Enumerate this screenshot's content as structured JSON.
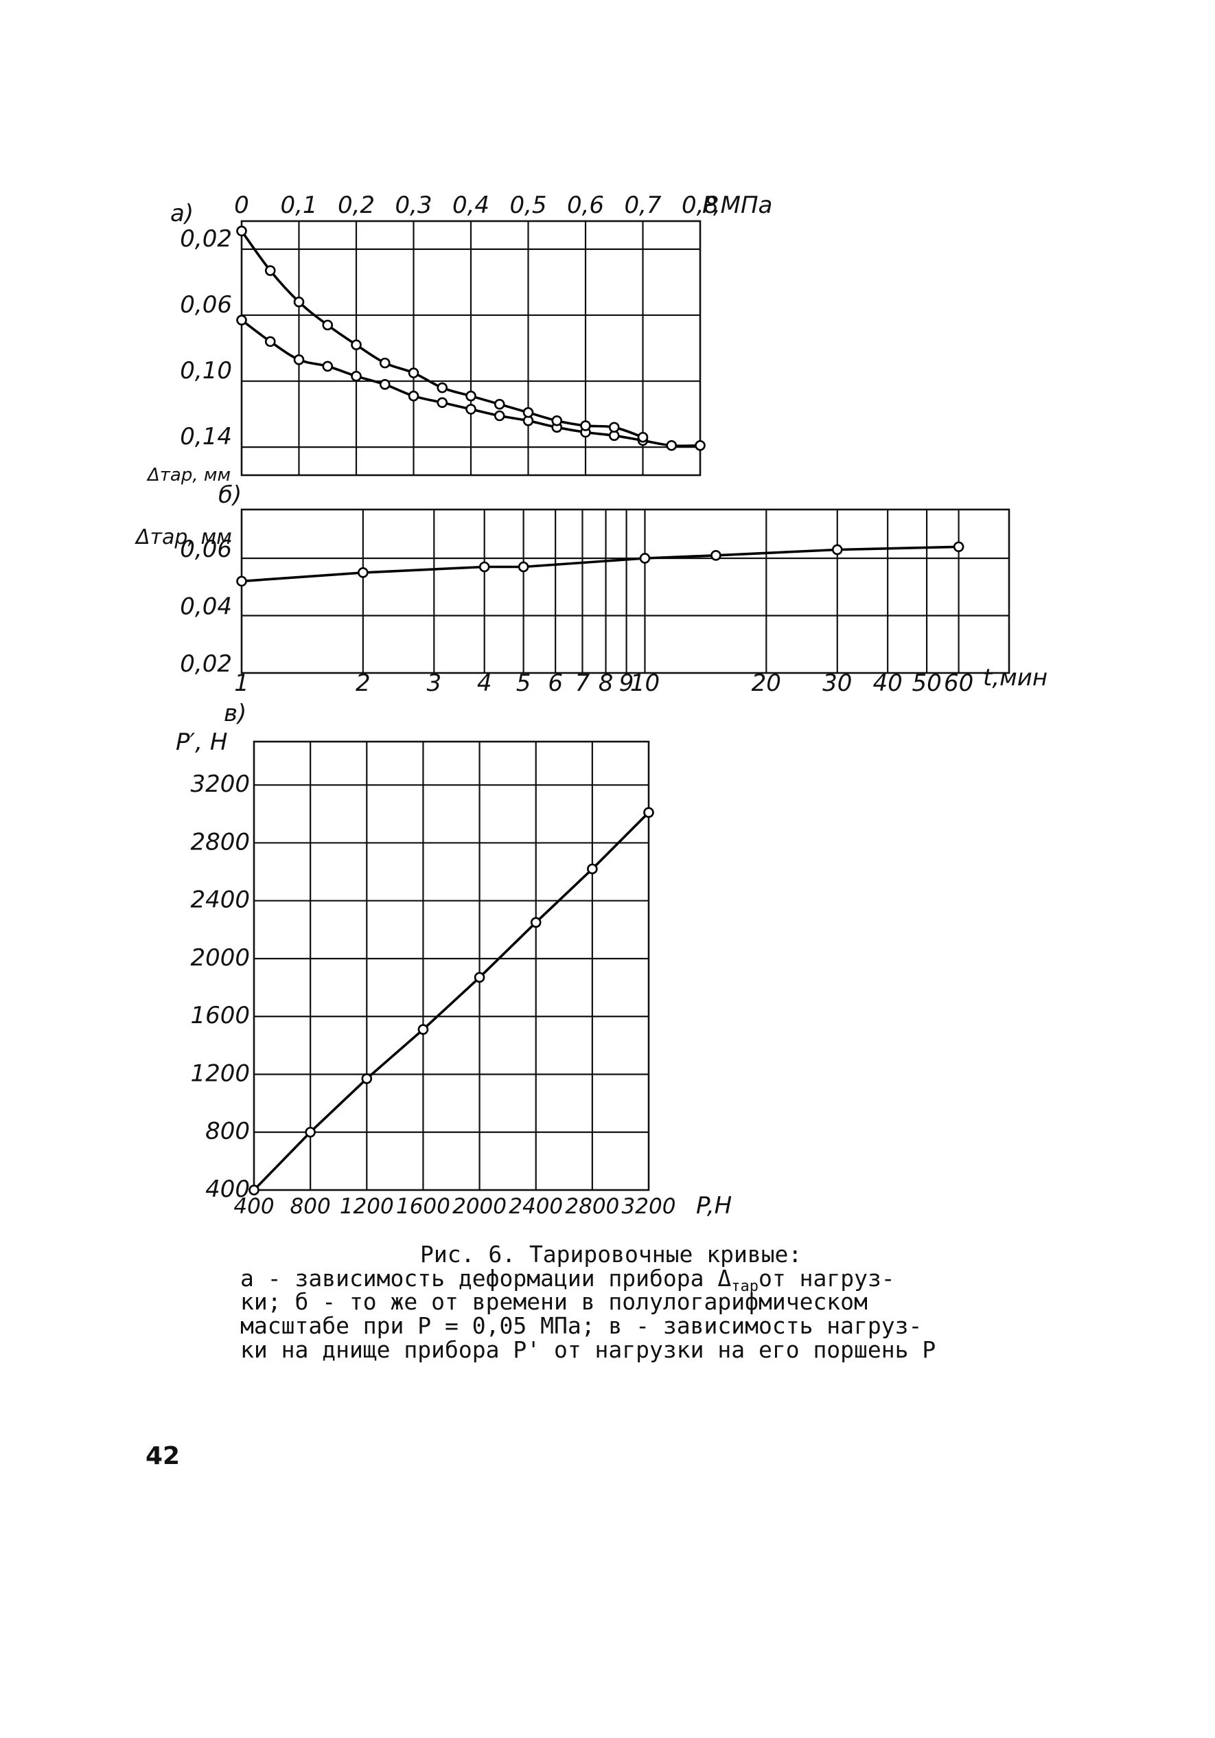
{
  "chart_data": [
    {
      "panel_label": "a)",
      "type": "scatter",
      "x_tick_labels": [
        "0",
        "0,1",
        "0,2",
        "0,3",
        "0,4",
        "0,5",
        "0,6",
        "0,7",
        "0,8"
      ],
      "x_unit_label": "P,МПа",
      "y_tick_labels": [
        "0,02",
        "0,06",
        "0,10",
        "0,14"
      ],
      "ylabel": "Δтар, мм",
      "xlim": [
        0,
        0.8
      ],
      "ylim": [
        0.157,
        0.003
      ],
      "grid": true,
      "series": [
        {
          "x": [
            0.0,
            0.05,
            0.1,
            0.15,
            0.2,
            0.25,
            0.3,
            0.35,
            0.4,
            0.45,
            0.5,
            0.55,
            0.6,
            0.65,
            0.7,
            0.75,
            0.8
          ],
          "y": [
            0.063,
            0.076,
            0.087,
            0.091,
            0.097,
            0.102,
            0.109,
            0.113,
            0.117,
            0.121,
            0.124,
            0.128,
            0.131,
            0.133,
            0.136,
            0.139,
            0.139
          ]
        },
        {
          "x": [
            0.0,
            0.05,
            0.1,
            0.15,
            0.2,
            0.25,
            0.3,
            0.35,
            0.4,
            0.45,
            0.5,
            0.55,
            0.6,
            0.65,
            0.7
          ],
          "y": [
            0.009,
            0.033,
            0.052,
            0.066,
            0.078,
            0.089,
            0.095,
            0.104,
            0.109,
            0.114,
            0.119,
            0.124,
            0.127,
            0.128,
            0.134
          ]
        }
      ]
    },
    {
      "panel_label": "б)",
      "type": "line",
      "x_scale": "log",
      "x_tick_labels": [
        "1",
        "2",
        "3",
        "4",
        "5",
        "6",
        "7",
        "8",
        "9",
        "10",
        "20",
        "30",
        "40",
        "50",
        "60"
      ],
      "x_unit_label": "t,мин",
      "y_tick_labels": [
        "0,02",
        "0,04",
        "0,06"
      ],
      "ylabel": "Δтар, мм",
      "xlim": [
        1,
        80
      ],
      "ylim": [
        0.02,
        0.077
      ],
      "grid": true,
      "series": [
        {
          "x": [
            1,
            2,
            4,
            5,
            10,
            15,
            30,
            60
          ],
          "y": [
            0.052,
            0.055,
            0.057,
            0.057,
            0.06,
            0.061,
            0.063,
            0.064
          ]
        }
      ]
    },
    {
      "panel_label": "в)",
      "type": "line",
      "x_tick_labels": [
        "400",
        "800",
        "1200",
        "1600",
        "2000",
        "2400",
        "2800",
        "3200"
      ],
      "x_unit_label": "P,H",
      "y_tick_labels": [
        "400",
        "800",
        "1200",
        "1600",
        "2000",
        "2400",
        "2800",
        "3200"
      ],
      "ylabel": "P′, H",
      "xlim": [
        400,
        3200
      ],
      "ylim": [
        400,
        3500
      ],
      "grid": true,
      "series": [
        {
          "x": [
            400,
            800,
            1200,
            1600,
            2000,
            2400,
            2800,
            3200
          ],
          "y": [
            400,
            800,
            1170,
            1510,
            1870,
            2250,
            2620,
            3010
          ]
        }
      ]
    }
  ],
  "caption": {
    "title": "Рис. 6. Тарировочные кривые:",
    "line1_a": "а - зависимость деформации прибора Δ",
    "line1_sub": "тар",
    "line1_b": "от нагруз-",
    "line2": "ки; б - то же от времени в полулогарифмическом",
    "line3": "масштабе при P = 0,05 МПа; в - зависимость нагруз-",
    "line4": "ки на днище прибора P' от нагрузки на его поршень P"
  },
  "page_number": "42"
}
